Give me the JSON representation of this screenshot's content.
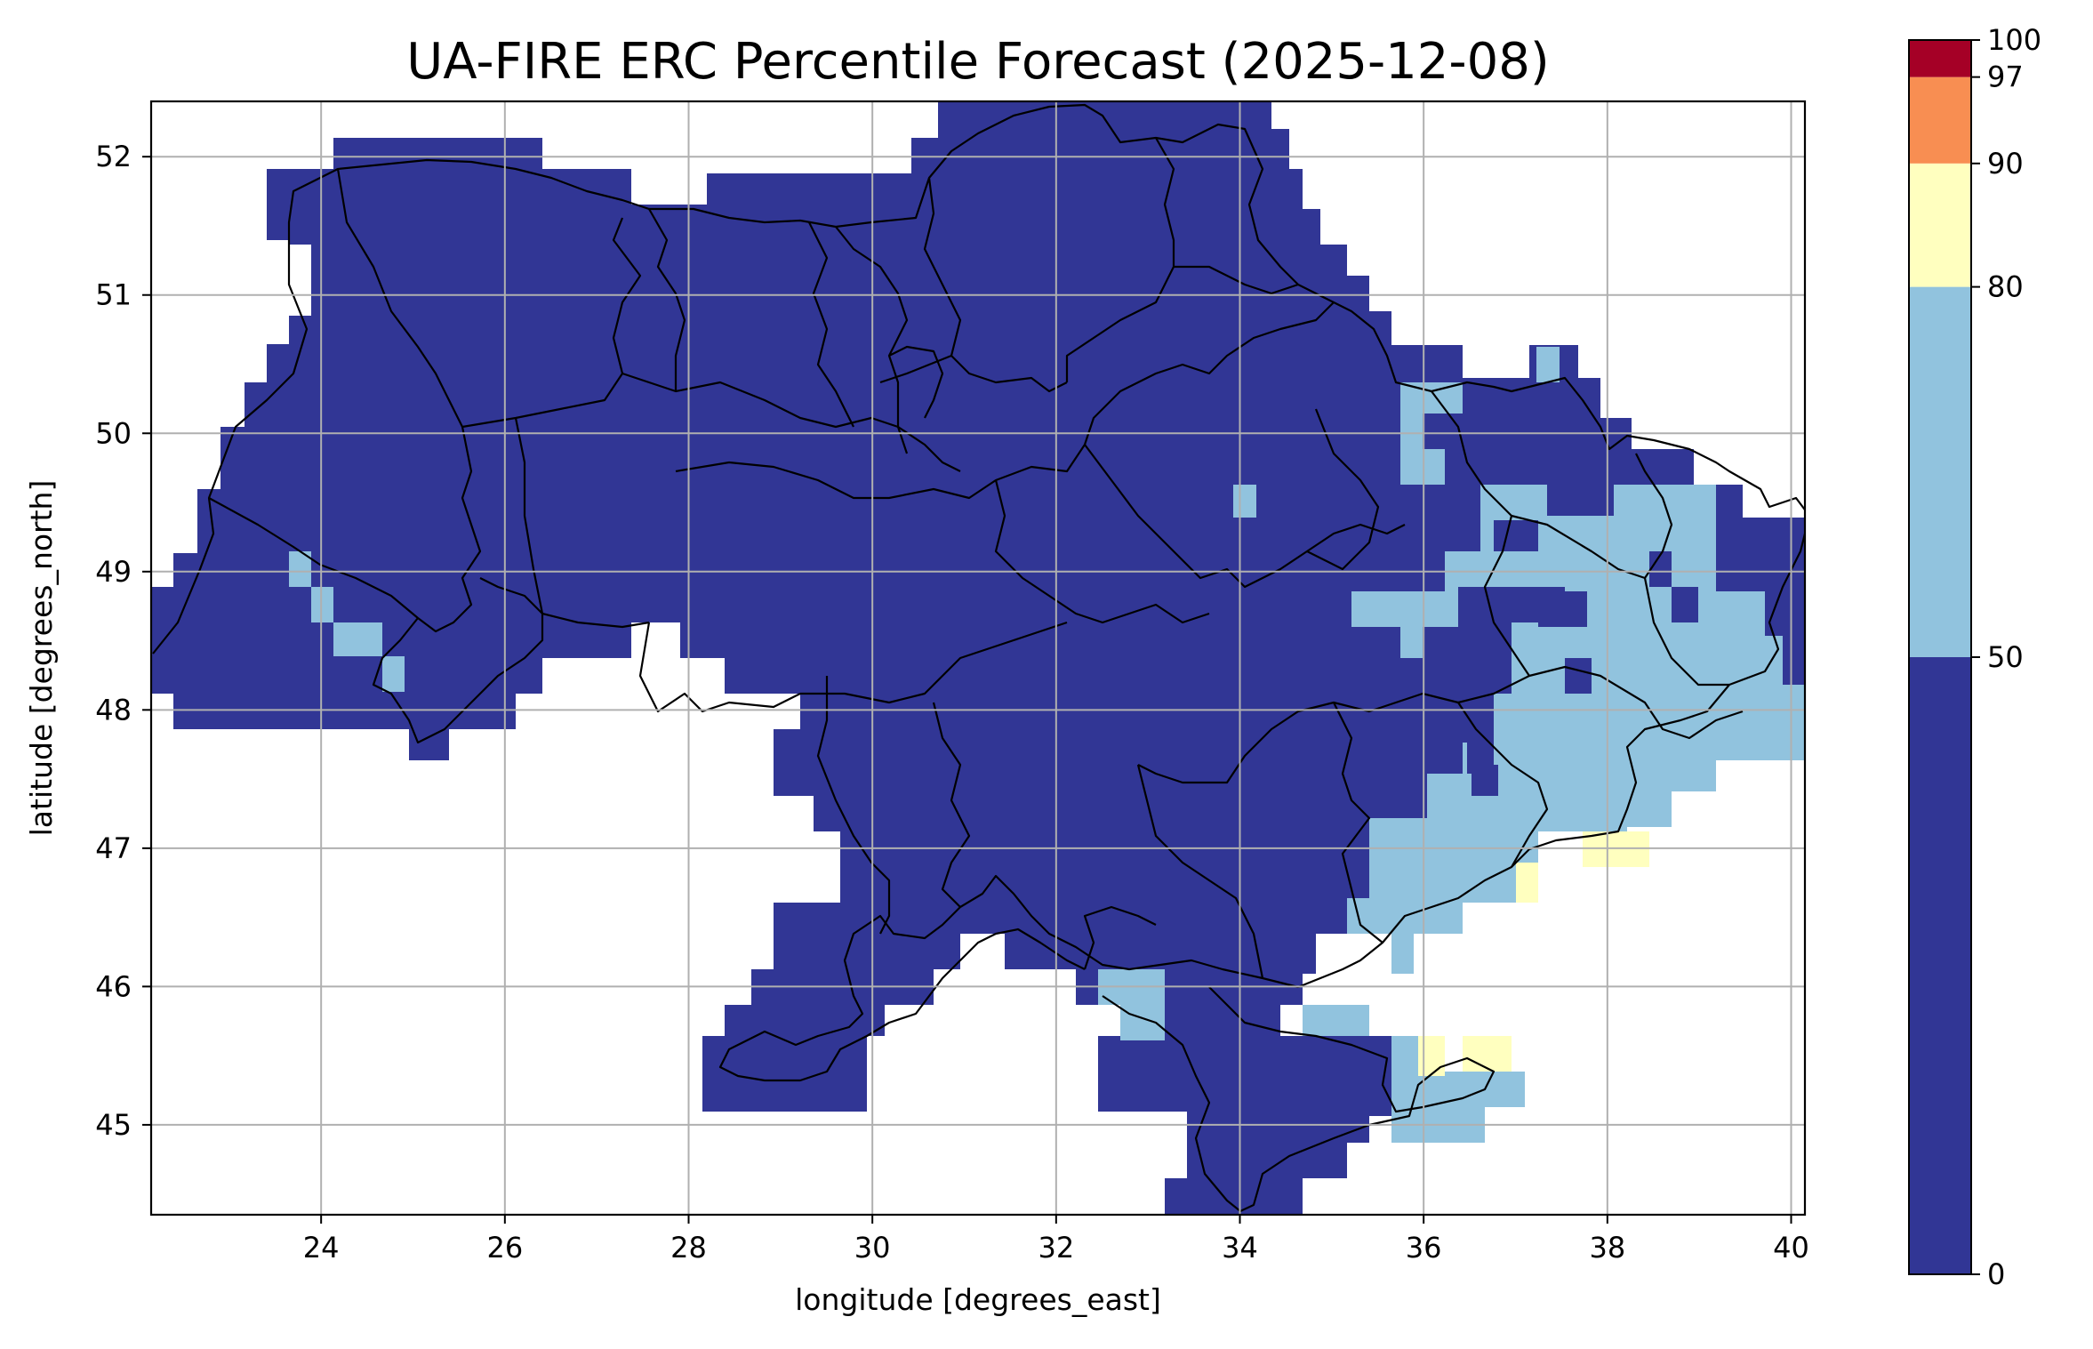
{
  "chart_data": {
    "type": "heatmap",
    "title": "UA-FIRE ERC Percentile Forecast (2025-12-08)",
    "xlabel": "longitude [degrees_east]",
    "ylabel": "latitude [degrees_north]",
    "xlim": [
      22.15,
      40.15
    ],
    "ylim": [
      44.35,
      52.4
    ],
    "xticks": [
      24,
      26,
      28,
      30,
      32,
      34,
      36,
      38,
      40
    ],
    "yticks": [
      45,
      46,
      47,
      48,
      49,
      50,
      51,
      52
    ],
    "grid": true,
    "cell_size_deg": [
      0.25,
      0.25
    ],
    "colorbar": {
      "boundaries": [
        0,
        50,
        80,
        90,
        97,
        100
      ],
      "tick_labels": [
        "0",
        "50",
        "80",
        "90",
        "97",
        "100"
      ],
      "colors": [
        "#313695",
        "#91c3de",
        "#ffffbf",
        "#f88e52",
        "#a50026"
      ]
    },
    "base_value": 25,
    "highlight_cells": [
      {
        "lon": 37.25,
        "lat": 50.5,
        "value": 65
      },
      {
        "lon": 36.0,
        "lat": 50.25,
        "value": 65
      },
      {
        "lon": 36.0,
        "lat": 49.75,
        "value": 65
      },
      {
        "lon": 34.0,
        "lat": 49.5,
        "value": 65
      },
      {
        "lon": 37.25,
        "lat": 49.5,
        "value": 65
      },
      {
        "lon": 37.75,
        "lat": 49.25,
        "value": 65
      },
      {
        "lon": 38.5,
        "lat": 49.0,
        "value": 65
      },
      {
        "lon": 36.25,
        "lat": 49.0,
        "value": 65
      },
      {
        "lon": 37.5,
        "lat": 48.75,
        "value": 65
      },
      {
        "lon": 39.0,
        "lat": 48.5,
        "value": 65
      },
      {
        "lon": 35.75,
        "lat": 48.5,
        "value": 65
      },
      {
        "lon": 38.0,
        "lat": 48.25,
        "value": 65
      },
      {
        "lon": 38.5,
        "lat": 48.0,
        "value": 65
      },
      {
        "lon": 36.5,
        "lat": 47.75,
        "value": 65
      },
      {
        "lon": 37.0,
        "lat": 47.5,
        "value": 65
      },
      {
        "lon": 35.75,
        "lat": 47.25,
        "value": 65
      },
      {
        "lon": 36.5,
        "lat": 47.0,
        "value": 65
      },
      {
        "lon": 35.5,
        "lat": 46.75,
        "value": 65
      },
      {
        "lon": 32.75,
        "lat": 45.75,
        "value": 65
      },
      {
        "lon": 35.0,
        "lat": 45.75,
        "value": 65
      },
      {
        "lon": 23.75,
        "lat": 48.75,
        "value": 65
      },
      {
        "lon": 24.5,
        "lat": 48.5,
        "value": 65
      },
      {
        "lon": 36.0,
        "lat": 45.25,
        "value": 65
      },
      {
        "lon": 37.75,
        "lat": 47.0,
        "value": 85
      },
      {
        "lon": 36.75,
        "lat": 46.75,
        "value": 85
      },
      {
        "lon": 36.25,
        "lat": 45.5,
        "value": 85
      },
      {
        "lon": 36.75,
        "lat": 45.5,
        "value": 85
      }
    ]
  }
}
